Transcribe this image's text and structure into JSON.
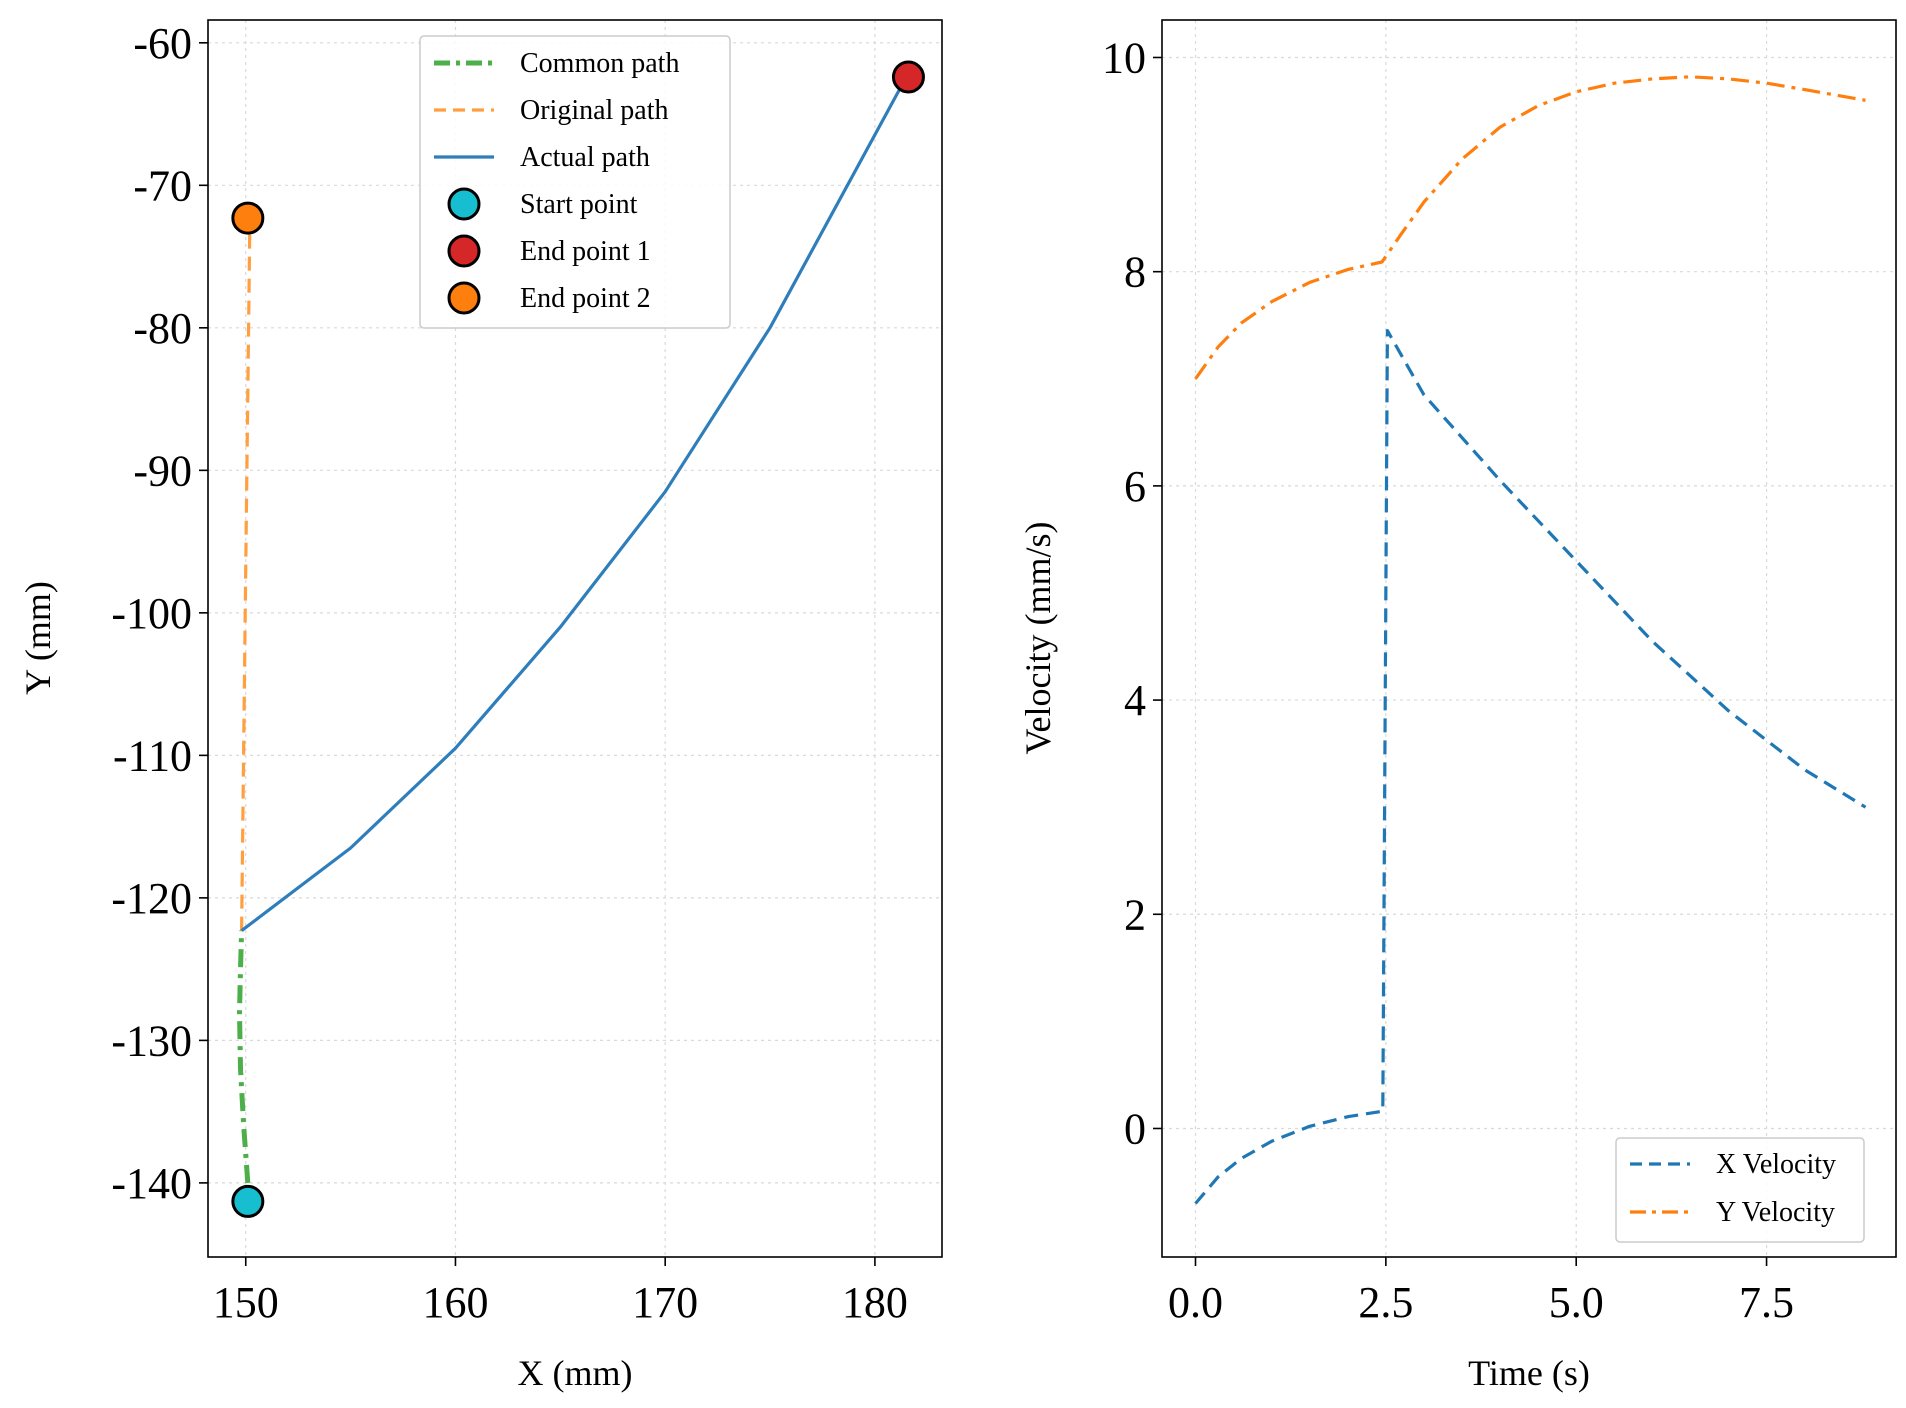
{
  "chart_data": [
    {
      "type": "line",
      "title": "",
      "xlabel": "X (mm)",
      "ylabel": "Y (mm)",
      "xlim": [
        148.2,
        183.2
      ],
      "ylim": [
        -145.2,
        -58.4
      ],
      "xticks": [
        150,
        160,
        170,
        180
      ],
      "yticks": [
        -140,
        -130,
        -120,
        -110,
        -100,
        -90,
        -80,
        -70,
        -60
      ],
      "xtick_labels": [
        "150",
        "160",
        "170",
        "180"
      ],
      "ytick_labels": [
        "-140",
        "-130",
        "-120",
        "-110",
        "-100",
        "-90",
        "-80",
        "-70",
        "-60"
      ],
      "grid": true,
      "legend_position": "top-right",
      "series": [
        {
          "name": "Common path",
          "style": "dashdot",
          "color": "#4daf4a",
          "x": [
            150.1,
            149.9,
            149.75,
            149.7,
            149.75,
            149.8
          ],
          "y": [
            -140.0,
            -136.0,
            -132.0,
            -128.0,
            -125.0,
            -122.3
          ]
        },
        {
          "name": "Original path",
          "style": "dashed",
          "color": "#ff9f40",
          "x": [
            149.8,
            150.0,
            150.2
          ],
          "y": [
            -122.3,
            -97.0,
            -72.3
          ]
        },
        {
          "name": "Actual path",
          "style": "solid",
          "color": "#2f7ebc",
          "x": [
            149.8,
            155.0,
            160.0,
            165.0,
            170.0,
            175.0,
            181.5
          ],
          "y": [
            -122.3,
            -116.5,
            -109.5,
            -101.0,
            -91.5,
            -80.0,
            -62.4
          ]
        }
      ],
      "points": [
        {
          "name": "Start point",
          "x": 150.1,
          "y": -141.3,
          "color": "#17becf"
        },
        {
          "name": "End point 1",
          "x": 181.6,
          "y": -62.4,
          "color": "#d62728"
        },
        {
          "name": "End point 2",
          "x": 150.1,
          "y": -72.3,
          "color": "#ff7f0e"
        }
      ]
    },
    {
      "type": "line",
      "title": "",
      "xlabel": "Time (s)",
      "ylabel": "Velocity (mm/s)",
      "xlim": [
        -0.44,
        9.2
      ],
      "ylim": [
        -1.2,
        10.35
      ],
      "xticks": [
        0.0,
        2.5,
        5.0,
        7.5
      ],
      "yticks": [
        0,
        2,
        4,
        6,
        8,
        10
      ],
      "xtick_labels": [
        "0.0",
        "2.5",
        "5.0",
        "7.5"
      ],
      "ytick_labels": [
        "0",
        "2",
        "4",
        "6",
        "8",
        "10"
      ],
      "grid": true,
      "legend_position": "bottom-right",
      "series": [
        {
          "name": "X Velocity",
          "style": "dashed",
          "color": "#1f77b4",
          "x": [
            0.0,
            0.3,
            0.6,
            1.0,
            1.5,
            2.0,
            2.45,
            2.46,
            2.52,
            3.0,
            4.0,
            5.0,
            6.0,
            7.0,
            8.0,
            8.8
          ],
          "y": [
            -0.7,
            -0.45,
            -0.28,
            -0.12,
            0.02,
            0.11,
            0.16,
            0.16,
            7.45,
            6.85,
            6.05,
            5.3,
            4.55,
            3.9,
            3.35,
            3.0
          ]
        },
        {
          "name": "Y Velocity",
          "style": "dashdot",
          "color": "#ff7f0e",
          "x": [
            0.0,
            0.3,
            0.6,
            1.0,
            1.5,
            2.0,
            2.45,
            2.7,
            3.0,
            3.5,
            4.0,
            4.5,
            5.0,
            5.5,
            6.0,
            6.5,
            7.0,
            7.5,
            8.0,
            8.8
          ],
          "y": [
            7.0,
            7.3,
            7.52,
            7.72,
            7.9,
            8.02,
            8.09,
            8.35,
            8.65,
            9.05,
            9.35,
            9.55,
            9.68,
            9.76,
            9.8,
            9.82,
            9.8,
            9.76,
            9.7,
            9.6
          ]
        }
      ]
    }
  ]
}
